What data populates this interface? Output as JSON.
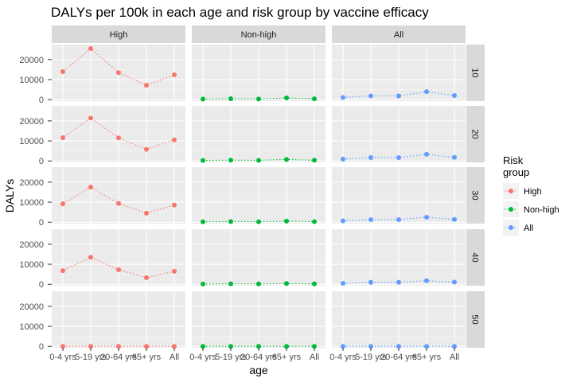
{
  "chart_data": {
    "type": "line",
    "title": "DALYs per 100k in each age and risk group by vaccine efficacy",
    "xlabel": "age",
    "ylabel": "DALYs",
    "categories": [
      "0-4 yrs",
      "5-19 yrs",
      "20-64 yrs",
      "65+ yrs",
      "All"
    ],
    "yticks": [
      0,
      10000,
      20000
    ],
    "ylim": [
      -700,
      27500
    ],
    "grid": true,
    "legend_title": "Risk group",
    "legend_placement": "right",
    "column_facets": [
      "High",
      "Non-high",
      "All"
    ],
    "row_facets": [
      "10",
      "20",
      "30",
      "40",
      "50"
    ],
    "series": [
      {
        "name": "High",
        "color": "#F8766D"
      },
      {
        "name": "Non-high",
        "color": "#00BA38"
      },
      {
        "name": "All",
        "color": "#619CFF"
      }
    ],
    "panels": {
      "10": {
        "High": [
          14000,
          25500,
          13500,
          7200,
          12400
        ],
        "Non-high": [
          300,
          500,
          350,
          900,
          450
        ],
        "All": [
          1100,
          1900,
          1900,
          4000,
          2100
        ]
      },
      "20": {
        "High": [
          11600,
          21400,
          11500,
          5800,
          10500
        ],
        "Non-high": [
          250,
          400,
          300,
          750,
          350
        ],
        "All": [
          900,
          1700,
          1700,
          3300,
          1800
        ]
      },
      "30": {
        "High": [
          9200,
          17500,
          9400,
          4500,
          8600
        ],
        "Non-high": [
          200,
          350,
          250,
          550,
          300
        ],
        "All": [
          700,
          1300,
          1300,
          2500,
          1400
        ]
      },
      "40": {
        "High": [
          6800,
          13500,
          7300,
          3300,
          6500
        ],
        "Non-high": [
          150,
          250,
          200,
          400,
          220
        ],
        "All": [
          500,
          1000,
          1000,
          1800,
          1100
        ]
      },
      "50": {
        "High": [
          0,
          0,
          0,
          0,
          0
        ],
        "Non-high": [
          0,
          0,
          0,
          0,
          0
        ],
        "All": [
          0,
          0,
          0,
          0,
          0
        ]
      }
    }
  }
}
